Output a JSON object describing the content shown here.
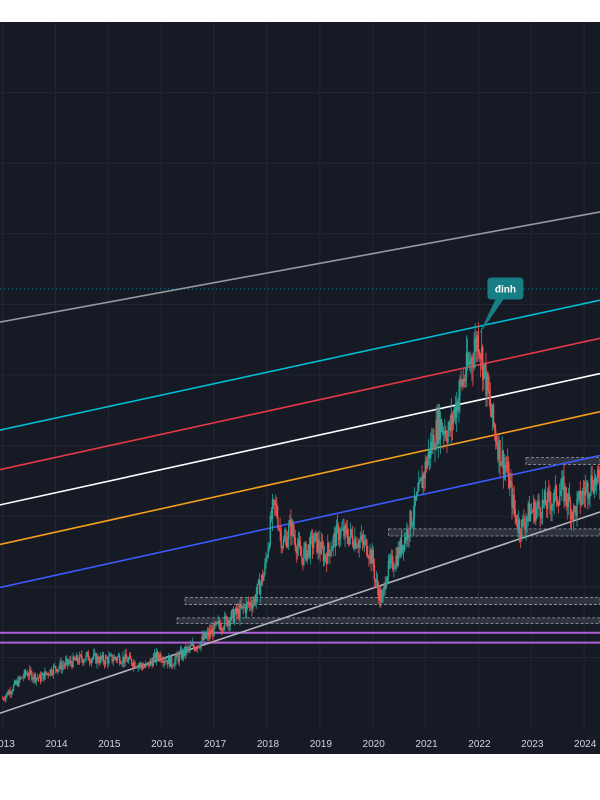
{
  "chart_data": {
    "type": "candlestick",
    "title": "",
    "xlabel": "",
    "ylabel": "",
    "x_ticks": [
      "2013",
      "2014",
      "2015",
      "2016",
      "2017",
      "2018",
      "2019",
      "2020",
      "2021",
      "2022",
      "2023",
      "2024"
    ],
    "xlim": [
      2012.95,
      2024.3
    ],
    "ylim": [
      0,
      100
    ],
    "grid": true,
    "annotation": {
      "text": "đỉnh",
      "x": 2022.0,
      "y": 55.6
    },
    "price_series": [
      [
        2013.0,
        4.2
      ],
      [
        2013.25,
        6.2
      ],
      [
        2013.45,
        7.8
      ],
      [
        2013.7,
        7.0
      ],
      [
        2013.95,
        8.4
      ],
      [
        2014.3,
        9.3
      ],
      [
        2014.6,
        10.1
      ],
      [
        2014.9,
        9.6
      ],
      [
        2015.2,
        10.0
      ],
      [
        2015.45,
        9.4
      ],
      [
        2015.7,
        8.6
      ],
      [
        2015.95,
        10.4
      ],
      [
        2016.2,
        9.2
      ],
      [
        2016.45,
        10.8
      ],
      [
        2016.75,
        12.2
      ],
      [
        2017.1,
        14.6
      ],
      [
        2017.45,
        16.3
      ],
      [
        2017.75,
        18.0
      ],
      [
        2017.95,
        22.0
      ],
      [
        2018.1,
        30.6
      ],
      [
        2018.17,
        31.2
      ],
      [
        2018.3,
        25.8
      ],
      [
        2018.45,
        28.6
      ],
      [
        2018.65,
        24.1
      ],
      [
        2018.9,
        26.6
      ],
      [
        2019.1,
        24.3
      ],
      [
        2019.35,
        27.8
      ],
      [
        2019.65,
        26.9
      ],
      [
        2019.9,
        25.7
      ],
      [
        2020.0,
        23.8
      ],
      [
        2020.05,
        20.8
      ],
      [
        2020.18,
        17.8
      ],
      [
        2020.25,
        21.8
      ],
      [
        2020.45,
        24.2
      ],
      [
        2020.65,
        27.8
      ],
      [
        2020.85,
        32.5
      ],
      [
        2021.05,
        38.6
      ],
      [
        2021.25,
        43.2
      ],
      [
        2021.45,
        41.9
      ],
      [
        2021.65,
        48.0
      ],
      [
        2021.9,
        53.2
      ],
      [
        2022.0,
        55.6
      ],
      [
        2022.1,
        51.0
      ],
      [
        2022.25,
        44.0
      ],
      [
        2022.4,
        39.2
      ],
      [
        2022.55,
        36.1
      ],
      [
        2022.7,
        29.9
      ],
      [
        2022.8,
        28.3
      ],
      [
        2022.95,
        30.4
      ],
      [
        2023.15,
        31.3
      ],
      [
        2023.4,
        32.3
      ],
      [
        2023.6,
        33.8
      ],
      [
        2023.8,
        30.4
      ],
      [
        2023.95,
        32.8
      ],
      [
        2024.15,
        35.2
      ],
      [
        2024.3,
        34.5
      ]
    ],
    "channel_lines": [
      {
        "color": "#9598a1",
        "from": [
          2012.95,
          57.5
        ],
        "to": [
          2024.3,
          73.1
        ]
      },
      {
        "color": "#00bcd4",
        "from": [
          2012.95,
          42.2
        ],
        "to": [
          2024.3,
          60.6
        ]
      },
      {
        "color": "#e53945",
        "from": [
          2012.95,
          36.6
        ],
        "to": [
          2024.3,
          55.2
        ]
      },
      {
        "color": "#ffffff",
        "from": [
          2012.95,
          31.6
        ],
        "to": [
          2024.3,
          50.2
        ]
      },
      {
        "color": "#f59e1b",
        "from": [
          2012.95,
          26.0
        ],
        "to": [
          2024.3,
          44.8
        ]
      },
      {
        "color": "#3d5afe",
        "from": [
          2012.95,
          19.9
        ],
        "to": [
          2024.3,
          38.6
        ]
      },
      {
        "color": "#b2b5be",
        "from": [
          2012.95,
          2.1
        ],
        "to": [
          2024.3,
          30.6
        ]
      }
    ],
    "support_zones": [
      {
        "style": "box",
        "from": 2022.9,
        "top": 38.3,
        "bottom": 37.3
      },
      {
        "style": "box",
        "from": 2020.3,
        "top": 28.2,
        "bottom": 27.2
      },
      {
        "style": "box",
        "from": 2016.45,
        "top": 18.5,
        "bottom": 17.5
      },
      {
        "style": "box",
        "from": 2016.3,
        "top": 15.6,
        "bottom": 14.8
      },
      {
        "style": "line",
        "color": "#b061d8",
        "from": 2012.95,
        "y": 13.5
      },
      {
        "style": "line",
        "color": "#b061d8",
        "from": 2012.95,
        "y": 12.1
      }
    ],
    "dotted_level": {
      "color": "#00bcd4",
      "y": 62.2
    }
  }
}
